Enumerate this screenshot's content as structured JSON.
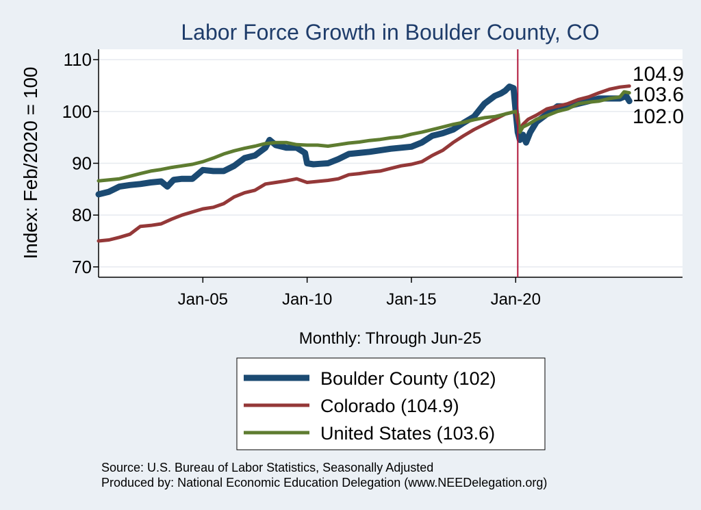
{
  "chart_data": {
    "type": "line",
    "title": "Labor Force Growth in Boulder  County, CO",
    "xlabel": "Monthly: Through Jun-25",
    "ylabel": "Index: Feb/2020 = 100",
    "xlim": [
      2000.0,
      2028.0
    ],
    "ylim": [
      68,
      112
    ],
    "yticks": [
      70,
      80,
      90,
      100,
      110
    ],
    "xticks": [
      {
        "value": 2005.0,
        "label": "Jan-05"
      },
      {
        "value": 2010.0,
        "label": "Jan-10"
      },
      {
        "value": 2015.0,
        "label": "Jan-15"
      },
      {
        "value": 2020.0,
        "label": "Jan-20"
      }
    ],
    "vline": {
      "x": 2020.1,
      "color": "#b0163a"
    },
    "end_labels": [
      "104.9",
      "103.6",
      "102.0"
    ],
    "series": [
      {
        "name": "Boulder  County (102)",
        "color": "#1b4a72",
        "width": 9,
        "x": [
          2000.0,
          2000.5,
          2001.0,
          2001.5,
          2002.0,
          2002.5,
          2003.0,
          2003.3,
          2003.6,
          2004.0,
          2004.5,
          2005.0,
          2005.5,
          2006.0,
          2006.5,
          2007.0,
          2007.5,
          2008.0,
          2008.2,
          2008.5,
          2009.0,
          2009.5,
          2009.9,
          2010.0,
          2010.3,
          2010.6,
          2011.0,
          2011.5,
          2012.0,
          2012.5,
          2013.0,
          2013.5,
          2014.0,
          2014.5,
          2015.0,
          2015.5,
          2016.0,
          2016.5,
          2017.0,
          2017.5,
          2018.0,
          2018.5,
          2019.0,
          2019.3,
          2019.5,
          2019.7,
          2019.9,
          2020.0,
          2020.1,
          2020.2,
          2020.35,
          2020.5,
          2020.7,
          2021.0,
          2021.5,
          2022.0,
          2022.5,
          2023.0,
          2023.5,
          2024.0,
          2024.5,
          2025.0,
          2025.3,
          2025.45
        ],
        "values": [
          84.0,
          84.5,
          85.5,
          85.8,
          86.0,
          86.3,
          86.5,
          85.5,
          86.8,
          87.0,
          87.0,
          88.7,
          88.5,
          88.5,
          89.5,
          91.0,
          91.5,
          93.0,
          94.5,
          93.5,
          93.0,
          93.0,
          92.0,
          90.0,
          89.8,
          89.9,
          90.0,
          90.8,
          91.8,
          92.0,
          92.2,
          92.5,
          92.8,
          93.0,
          93.2,
          94.0,
          95.3,
          95.8,
          96.5,
          97.8,
          99.0,
          101.5,
          103.0,
          103.5,
          104.0,
          104.8,
          104.5,
          100.0,
          96.0,
          94.5,
          95.5,
          94.0,
          96.0,
          98.0,
          99.5,
          101.0,
          101.0,
          101.5,
          102.0,
          102.5,
          102.5,
          102.5,
          103.0,
          102.0
        ]
      },
      {
        "name": "Colorado (104.9)",
        "color": "#943838",
        "width": 5,
        "x": [
          2000.0,
          2000.5,
          2001.0,
          2001.5,
          2002.0,
          2002.5,
          2003.0,
          2003.5,
          2004.0,
          2004.5,
          2005.0,
          2005.5,
          2006.0,
          2006.5,
          2007.0,
          2007.5,
          2008.0,
          2008.5,
          2009.0,
          2009.5,
          2010.0,
          2010.5,
          2011.0,
          2011.5,
          2012.0,
          2012.5,
          2013.0,
          2013.5,
          2014.0,
          2014.5,
          2015.0,
          2015.5,
          2016.0,
          2016.5,
          2017.0,
          2017.5,
          2018.0,
          2018.5,
          2019.0,
          2019.5,
          2020.0,
          2020.1,
          2020.2,
          2020.35,
          2020.6,
          2021.0,
          2021.5,
          2022.0,
          2022.5,
          2023.0,
          2023.5,
          2024.0,
          2024.5,
          2025.0,
          2025.45
        ],
        "values": [
          75.0,
          75.2,
          75.7,
          76.3,
          77.8,
          78.0,
          78.3,
          79.2,
          80.0,
          80.6,
          81.2,
          81.5,
          82.2,
          83.5,
          84.3,
          84.8,
          86.0,
          86.3,
          86.6,
          87.0,
          86.3,
          86.5,
          86.7,
          87.0,
          87.8,
          88.0,
          88.3,
          88.5,
          89.0,
          89.5,
          89.8,
          90.3,
          91.5,
          92.5,
          94.0,
          95.3,
          96.5,
          97.5,
          98.5,
          99.5,
          100.0,
          98.0,
          96.5,
          97.5,
          98.5,
          99.3,
          100.5,
          101.0,
          101.5,
          102.3,
          102.8,
          103.6,
          104.3,
          104.7,
          104.9
        ]
      },
      {
        "name": "United States (103.6)",
        "color": "#5e7c30",
        "width": 5,
        "x": [
          2000.0,
          2000.5,
          2001.0,
          2001.5,
          2002.0,
          2002.5,
          2003.0,
          2003.5,
          2004.0,
          2004.5,
          2005.0,
          2005.5,
          2006.0,
          2006.5,
          2007.0,
          2007.5,
          2008.0,
          2008.5,
          2009.0,
          2009.5,
          2010.0,
          2010.5,
          2011.0,
          2011.5,
          2012.0,
          2012.5,
          2013.0,
          2013.5,
          2014.0,
          2014.5,
          2015.0,
          2015.5,
          2016.0,
          2016.5,
          2017.0,
          2017.5,
          2018.0,
          2018.5,
          2019.0,
          2019.5,
          2020.0,
          2020.1,
          2020.2,
          2020.35,
          2020.6,
          2021.0,
          2021.5,
          2022.0,
          2022.5,
          2023.0,
          2023.5,
          2024.0,
          2024.5,
          2025.0,
          2025.2,
          2025.45
        ],
        "values": [
          86.6,
          86.8,
          87.0,
          87.5,
          88.0,
          88.5,
          88.8,
          89.2,
          89.5,
          89.8,
          90.3,
          91.0,
          91.8,
          92.4,
          92.9,
          93.3,
          93.8,
          94.0,
          94.0,
          93.6,
          93.5,
          93.5,
          93.3,
          93.6,
          93.9,
          94.1,
          94.4,
          94.6,
          94.9,
          95.1,
          95.6,
          96.0,
          96.5,
          97.0,
          97.5,
          97.9,
          98.4,
          98.8,
          99.0,
          99.5,
          100.0,
          99.5,
          96.0,
          97.0,
          97.5,
          98.5,
          99.2,
          100.0,
          100.5,
          101.5,
          101.8,
          102.0,
          102.5,
          102.8,
          103.8,
          103.6
        ]
      }
    ],
    "legend": {
      "placement": "bottom-center",
      "entries": [
        "Boulder  County (102)",
        "Colorado (104.9)",
        "United States (103.6)"
      ]
    },
    "notes": [
      "Source: U.S. Bureau of Labor Statistics, Seasonally Adjusted",
      "Produced by: National Economic Education Delegation (www.NEEDelegation.org)"
    ]
  }
}
